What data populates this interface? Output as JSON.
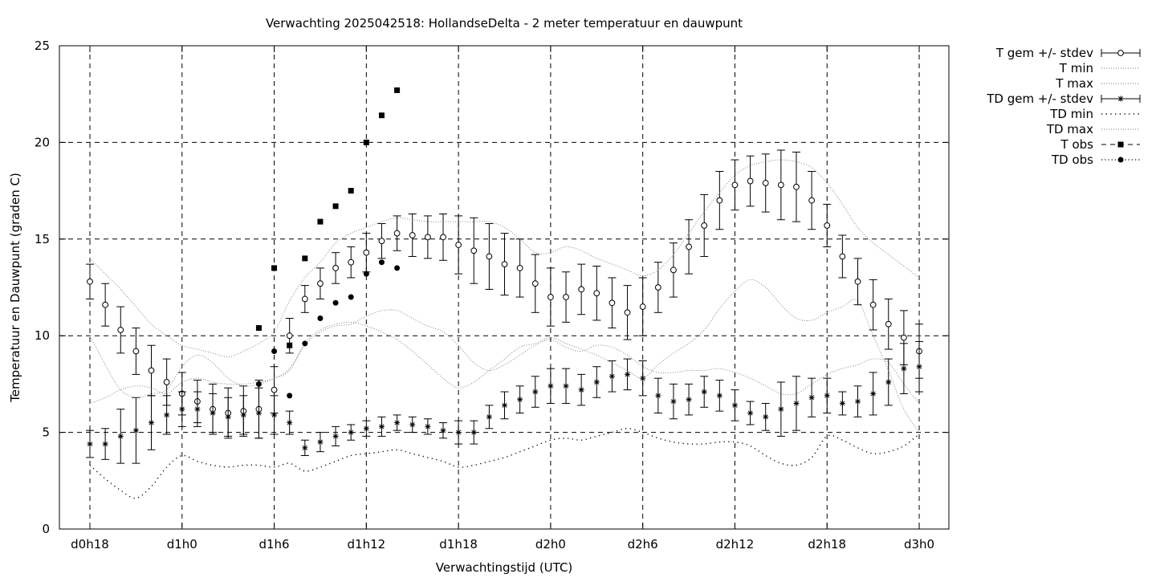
{
  "chart_data": {
    "type": "line",
    "title": "Verwachting 2025042518: HollandseDelta - 2 meter temperatuur en dauwpunt",
    "xlabel": "Verwachtingstijd (UTC)",
    "ylabel": "Temperatuur en Dauwpunt (graden C)",
    "xlim": [
      0,
      57
    ],
    "ylim": [
      0,
      25
    ],
    "grid": true,
    "legend_position": "outside-top-right",
    "x_ticks": [
      {
        "x": 0,
        "label": "d0h18"
      },
      {
        "x": 6,
        "label": "d1h0"
      },
      {
        "x": 12,
        "label": "d1h6"
      },
      {
        "x": 18,
        "label": "d1h12"
      },
      {
        "x": 24,
        "label": "d1h18"
      },
      {
        "x": 30,
        "label": "d2h0"
      },
      {
        "x": 36,
        "label": "d2h6"
      },
      {
        "x": 42,
        "label": "d2h12"
      },
      {
        "x": 48,
        "label": "d2h18"
      },
      {
        "x": 54,
        "label": "d3h0"
      }
    ],
    "y_ticks": [
      {
        "y": 0,
        "label": "0"
      },
      {
        "y": 5,
        "label": "5"
      },
      {
        "y": 10,
        "label": "10"
      },
      {
        "y": 15,
        "label": "15"
      },
      {
        "y": 20,
        "label": "20"
      },
      {
        "y": 25,
        "label": "25"
      }
    ],
    "series": [
      {
        "name": "T gem +/- stdev",
        "style": "errorbar-open-circle",
        "x": [
          0,
          1,
          2,
          3,
          4,
          5,
          6,
          7,
          8,
          9,
          10,
          11,
          12,
          13,
          14,
          15,
          16,
          17,
          18,
          19,
          20,
          21,
          22,
          23,
          24,
          25,
          26,
          27,
          28,
          29,
          30,
          31,
          32,
          33,
          34,
          35,
          36,
          37,
          38,
          39,
          40,
          41,
          42,
          43,
          44,
          45,
          46,
          47,
          48,
          49,
          50,
          51,
          52,
          53,
          54
        ],
        "y": [
          12.8,
          11.6,
          10.3,
          9.2,
          8.2,
          7.6,
          7.0,
          6.6,
          6.2,
          6.0,
          6.1,
          6.2,
          7.2,
          10.0,
          11.9,
          12.7,
          13.5,
          13.8,
          14.3,
          14.9,
          15.3,
          15.2,
          15.1,
          15.1,
          14.7,
          14.4,
          14.1,
          13.7,
          13.5,
          12.7,
          12.0,
          12.0,
          12.4,
          12.2,
          11.7,
          11.2,
          11.5,
          12.5,
          13.4,
          14.6,
          15.7,
          17.0,
          17.8,
          18.0,
          17.9,
          17.8,
          17.7,
          17.0,
          15.7,
          14.1,
          12.8,
          11.6,
          10.6,
          9.9,
          9.2
        ],
        "stdev": [
          0.9,
          1.1,
          1.2,
          1.2,
          1.3,
          1.2,
          1.1,
          1.1,
          1.3,
          1.3,
          1.3,
          1.5,
          1.2,
          0.9,
          0.7,
          0.8,
          0.8,
          0.8,
          1.0,
          0.9,
          0.9,
          1.1,
          1.1,
          1.2,
          1.5,
          1.7,
          1.7,
          1.6,
          1.5,
          1.5,
          1.5,
          1.3,
          1.3,
          1.4,
          1.3,
          1.4,
          1.5,
          1.3,
          1.4,
          1.4,
          1.6,
          1.5,
          1.3,
          1.3,
          1.5,
          1.8,
          1.8,
          1.5,
          1.1,
          1.1,
          1.2,
          1.3,
          1.3,
          1.4,
          1.4
        ]
      },
      {
        "name": "T min",
        "style": "thin-dotted",
        "x": [
          0,
          1,
          2,
          3,
          4,
          5,
          6,
          7,
          8,
          9,
          10,
          11,
          12,
          13,
          14,
          15,
          16,
          17,
          18,
          19,
          20,
          21,
          22,
          23,
          24,
          25,
          26,
          27,
          28,
          29,
          30,
          31,
          32,
          33,
          34,
          35,
          36,
          37,
          38,
          39,
          40,
          41,
          42,
          43,
          44,
          45,
          46,
          47,
          48,
          49,
          50,
          51,
          52,
          53,
          54
        ],
        "y": [
          6.5,
          6.8,
          7.2,
          7.4,
          7.3,
          7.0,
          7.6,
          7.8,
          7.6,
          7.5,
          7.5,
          7.6,
          7.8,
          8.3,
          9.5,
          10.2,
          10.5,
          10.6,
          11.0,
          11.3,
          11.3,
          10.9,
          10.5,
          10.2,
          9.5,
          8.6,
          8.2,
          8.5,
          9.0,
          9.5,
          9.8,
          9.4,
          9.2,
          9.5,
          9.4,
          9.0,
          8.4,
          8.1,
          8.1,
          8.2,
          8.2,
          8.3,
          8.1,
          7.8,
          7.4,
          7.0,
          7.0,
          7.5,
          8.0,
          8.3,
          8.5,
          8.8,
          8.6,
          7.5,
          6.5
        ]
      },
      {
        "name": "T max",
        "style": "thin-dotted",
        "x": [
          0,
          1,
          2,
          3,
          4,
          5,
          6,
          7,
          8,
          9,
          10,
          11,
          12,
          13,
          14,
          15,
          16,
          17,
          18,
          19,
          20,
          21,
          22,
          23,
          24,
          25,
          26,
          27,
          28,
          29,
          30,
          31,
          32,
          33,
          34,
          35,
          36,
          37,
          38,
          39,
          40,
          41,
          42,
          43,
          44,
          45,
          46,
          47,
          48,
          49,
          50,
          51,
          52,
          53,
          54
        ],
        "y": [
          14.0,
          13.2,
          12.4,
          11.5,
          10.6,
          10.0,
          9.5,
          9.3,
          9.1,
          8.9,
          9.2,
          9.6,
          10.2,
          11.8,
          13.0,
          13.8,
          14.8,
          15.3,
          15.6,
          15.9,
          16.1,
          16.0,
          15.9,
          15.9,
          15.9,
          15.9,
          15.9,
          15.6,
          15.0,
          14.3,
          14.3,
          14.6,
          14.4,
          14.0,
          13.7,
          13.4,
          13.1,
          13.4,
          14.2,
          15.3,
          16.4,
          17.4,
          18.3,
          18.8,
          19.0,
          19.1,
          19.0,
          18.7,
          17.9,
          16.8,
          15.6,
          14.8,
          14.2,
          13.6,
          13.0
        ]
      },
      {
        "name": "TD gem +/- stdev",
        "style": "errorbar-asterisk",
        "x": [
          0,
          1,
          2,
          3,
          4,
          5,
          6,
          7,
          8,
          9,
          10,
          11,
          12,
          13,
          14,
          15,
          16,
          17,
          18,
          19,
          20,
          21,
          22,
          23,
          24,
          25,
          26,
          27,
          28,
          29,
          30,
          31,
          32,
          33,
          34,
          35,
          36,
          37,
          38,
          39,
          40,
          41,
          42,
          43,
          44,
          45,
          46,
          47,
          48,
          49,
          50,
          51,
          52,
          53,
          54
        ],
        "y": [
          4.4,
          4.4,
          4.8,
          5.1,
          5.5,
          5.9,
          6.2,
          6.2,
          6.0,
          5.8,
          5.9,
          6.0,
          5.9,
          5.5,
          4.2,
          4.5,
          4.8,
          5.0,
          5.2,
          5.3,
          5.5,
          5.4,
          5.3,
          5.1,
          5.0,
          5.0,
          5.8,
          6.4,
          6.7,
          7.1,
          7.4,
          7.4,
          7.2,
          7.6,
          7.9,
          8.0,
          7.8,
          6.9,
          6.6,
          6.7,
          7.1,
          6.9,
          6.4,
          6.0,
          5.8,
          6.2,
          6.5,
          6.8,
          6.9,
          6.5,
          6.6,
          7.0,
          7.6,
          8.3,
          8.4
        ],
        "stdev": [
          0.7,
          0.8,
          1.4,
          1.7,
          1.4,
          1.0,
          0.9,
          0.9,
          1.0,
          1.0,
          1.0,
          1.3,
          1.0,
          0.6,
          0.4,
          0.5,
          0.5,
          0.4,
          0.4,
          0.5,
          0.4,
          0.4,
          0.4,
          0.4,
          0.6,
          0.6,
          0.6,
          0.7,
          0.7,
          0.8,
          0.9,
          0.9,
          0.8,
          0.8,
          0.8,
          0.8,
          0.9,
          0.9,
          0.9,
          0.8,
          0.8,
          0.8,
          0.8,
          0.6,
          0.7,
          1.4,
          1.4,
          1.0,
          0.9,
          0.6,
          0.8,
          1.1,
          1.2,
          1.3,
          1.3
        ]
      },
      {
        "name": "TD min",
        "style": "sparse-dotted",
        "x": [
          0,
          1,
          2,
          3,
          4,
          5,
          6,
          7,
          8,
          9,
          10,
          11,
          12,
          13,
          14,
          15,
          16,
          17,
          18,
          19,
          20,
          21,
          22,
          23,
          24,
          25,
          26,
          27,
          28,
          29,
          30,
          31,
          32,
          33,
          34,
          35,
          36,
          37,
          38,
          39,
          40,
          41,
          42,
          43,
          44,
          45,
          46,
          47,
          48,
          49,
          50,
          51,
          52,
          53,
          54
        ],
        "y": [
          3.3,
          2.6,
          2.0,
          1.6,
          2.2,
          3.2,
          3.8,
          3.5,
          3.3,
          3.2,
          3.3,
          3.3,
          3.2,
          3.4,
          3.0,
          3.2,
          3.5,
          3.8,
          3.9,
          4.0,
          4.1,
          3.9,
          3.7,
          3.5,
          3.2,
          3.3,
          3.5,
          3.7,
          4.0,
          4.3,
          4.6,
          4.7,
          4.6,
          4.8,
          5.0,
          5.2,
          5.0,
          4.7,
          4.5,
          4.4,
          4.4,
          4.5,
          4.5,
          4.3,
          3.8,
          3.4,
          3.3,
          3.7,
          4.8,
          4.6,
          4.2,
          3.9,
          4.0,
          4.3,
          4.9
        ]
      },
      {
        "name": "TD max",
        "style": "thin-dotted",
        "x": [
          0,
          1,
          2,
          3,
          4,
          5,
          6,
          7,
          8,
          9,
          10,
          11,
          12,
          13,
          14,
          15,
          16,
          17,
          18,
          19,
          20,
          21,
          22,
          23,
          24,
          25,
          26,
          27,
          28,
          29,
          30,
          31,
          32,
          33,
          34,
          35,
          36,
          37,
          38,
          39,
          40,
          41,
          42,
          43,
          44,
          45,
          46,
          47,
          48,
          49,
          50,
          51,
          52,
          53,
          54
        ],
        "y": [
          10.0,
          8.5,
          7.2,
          6.8,
          7.0,
          7.2,
          8.4,
          9.0,
          8.6,
          7.8,
          7.4,
          7.5,
          7.8,
          8.2,
          9.6,
          10.3,
          10.6,
          10.7,
          10.5,
          10.2,
          9.8,
          9.2,
          8.5,
          7.8,
          7.3,
          7.6,
          8.2,
          8.8,
          9.4,
          9.6,
          9.9,
          9.6,
          9.3,
          9.0,
          8.6,
          8.2,
          7.8,
          8.5,
          9.1,
          9.6,
          10.3,
          11.4,
          12.3,
          12.9,
          12.5,
          11.6,
          10.9,
          10.8,
          11.2,
          11.5,
          11.8,
          10.0,
          8.2,
          6.2,
          5.0
        ]
      },
      {
        "name": "T obs",
        "style": "filled-square",
        "x": [
          11,
          12,
          13,
          14,
          15,
          16,
          17,
          18,
          19,
          20
        ],
        "y": [
          10.4,
          13.5,
          9.5,
          14.0,
          15.9,
          16.7,
          17.5,
          20.0,
          21.4,
          22.7
        ]
      },
      {
        "name": "TD obs",
        "style": "filled-circle",
        "x": [
          11,
          12,
          13,
          14,
          15,
          16,
          17,
          18,
          19,
          20
        ],
        "y": [
          7.5,
          9.2,
          6.9,
          9.6,
          10.9,
          11.7,
          12.0,
          13.2,
          13.8,
          13.5
        ]
      }
    ]
  }
}
